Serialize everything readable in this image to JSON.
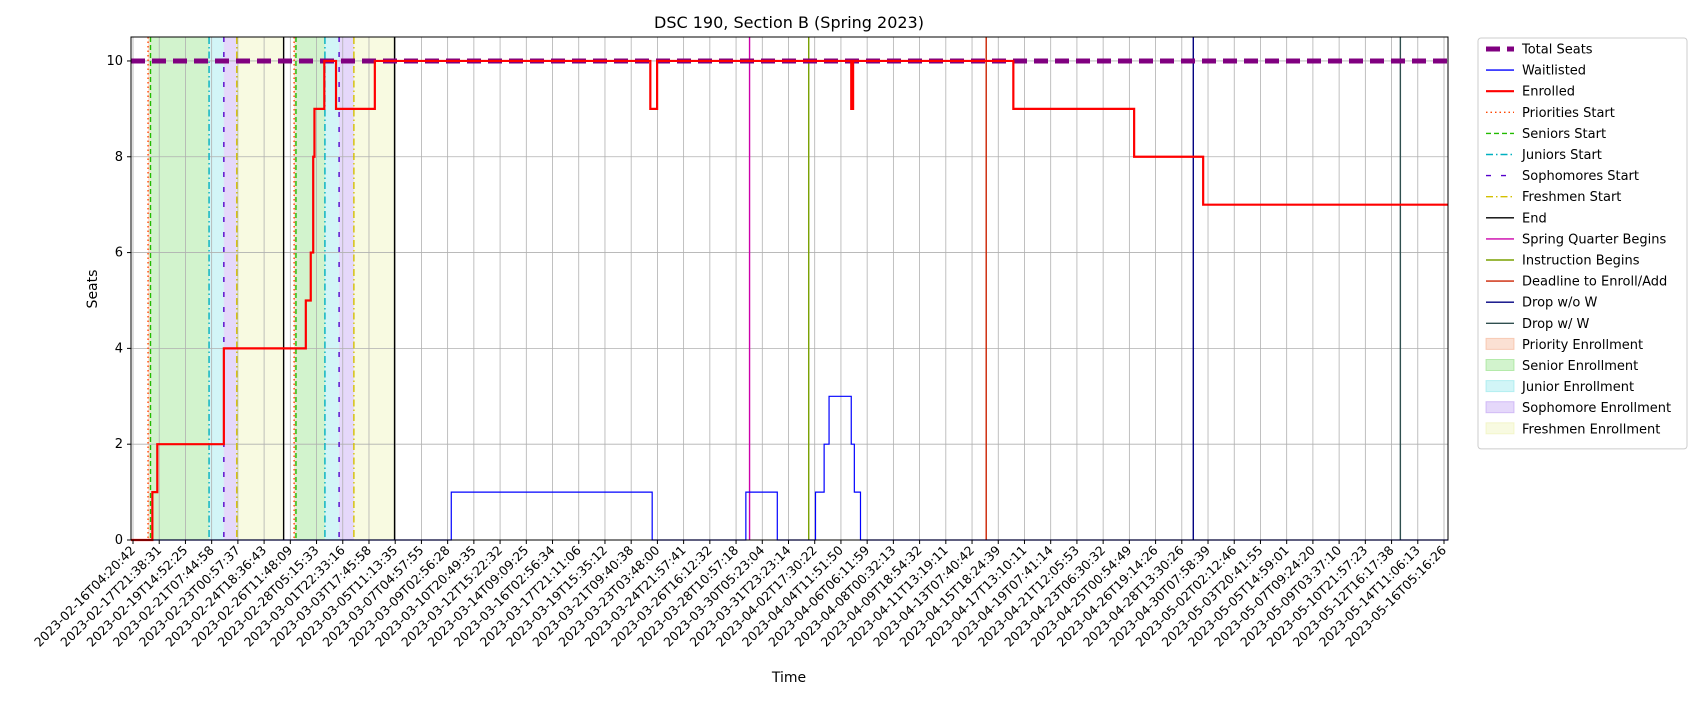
{
  "chart_data": {
    "type": "line",
    "title": "DSC 190, Section B (Spring 2023)",
    "xlabel": "Time",
    "ylabel": "Seats",
    "ylim": [
      0,
      10.5
    ],
    "yticks": [
      0,
      2,
      4,
      6,
      8,
      10
    ],
    "x_domain": [
      "2023-02-16T04:20:42",
      "2023-05-16T05:16:26"
    ],
    "grid": true,
    "legend_position": "right, outside plot",
    "xtick_labels": [
      "2023-02-16T04:20:42",
      "2023-02-17T21:38:31",
      "2023-02-19T14:52:25",
      "2023-02-21T07:44:58",
      "2023-02-23T00:57:37",
      "2023-02-24T18:36:43",
      "2023-02-26T11:48:09",
      "2023-02-28T05:15:33",
      "2023-03-01T22:33:16",
      "2023-03-03T17:45:58",
      "2023-03-05T11:13:35",
      "2023-03-07T04:57:55",
      "2023-03-09T02:56:28",
      "2023-03-10T20:49:35",
      "2023-03-12T15:22:32",
      "2023-03-14T09:09:25",
      "2023-03-16T02:56:34",
      "2023-03-17T21:11:06",
      "2023-03-19T15:35:12",
      "2023-03-21T09:40:38",
      "2023-03-23T03:48:00",
      "2023-03-24T21:57:41",
      "2023-03-26T16:12:32",
      "2023-03-28T10:57:18",
      "2023-03-30T05:23:04",
      "2023-03-31T23:23:14",
      "2023-04-02T17:30:22",
      "2023-04-04T11:51:50",
      "2023-04-06T06:11:59",
      "2023-04-08T00:32:13",
      "2023-04-09T18:54:32",
      "2023-04-11T13:19:11",
      "2023-04-13T07:40:42",
      "2023-04-15T18:24:39",
      "2023-04-17T13:10:11",
      "2023-04-19T07:41:14",
      "2023-04-21T12:05:53",
      "2023-04-23T06:30:32",
      "2023-04-25T00:54:49",
      "2023-04-26T19:14:26",
      "2023-04-28T13:30:26",
      "2023-04-30T07:58:39",
      "2023-05-02T02:12:46",
      "2023-05-03T20:41:55",
      "2023-05-05T14:59:01",
      "2023-05-07T09:24:20",
      "2023-05-09T03:37:10",
      "2023-05-10T21:57:23",
      "2023-05-12T16:17:38",
      "2023-05-14T11:06:13",
      "2023-05-16T05:16:26"
    ],
    "series": [
      {
        "name": "Total Seats",
        "color": "#800080",
        "style": "dashed-thick",
        "points": [
          [
            "2023-02-16T04:20:42",
            10
          ],
          [
            "2023-05-16T05:16:26",
            10
          ]
        ]
      },
      {
        "name": "Waitlisted",
        "color": "#0000ff",
        "style": "step",
        "points": [
          [
            "2023-02-16T04:20:42",
            0
          ],
          [
            "2023-03-09T20:00:00",
            0
          ],
          [
            "2023-03-09T20:00:00",
            1
          ],
          [
            "2023-03-23T10:00:00",
            1
          ],
          [
            "2023-03-23T10:00:00",
            0
          ],
          [
            "2023-03-29T18:00:00",
            0
          ],
          [
            "2023-03-29T18:00:00",
            1
          ],
          [
            "2023-03-31T21:00:00",
            1
          ],
          [
            "2023-03-31T21:00:00",
            0
          ],
          [
            "2023-04-03T11:00:00",
            0
          ],
          [
            "2023-04-03T11:00:00",
            1
          ],
          [
            "2023-04-04T01:00:00",
            1
          ],
          [
            "2023-04-04T01:00:00",
            2
          ],
          [
            "2023-04-04T09:00:00",
            2
          ],
          [
            "2023-04-04T09:00:00",
            3
          ],
          [
            "2023-04-05T21:00:00",
            3
          ],
          [
            "2023-04-05T21:00:00",
            2
          ],
          [
            "2023-04-06T02:00:00",
            2
          ],
          [
            "2023-04-06T02:00:00",
            1
          ],
          [
            "2023-04-06T12:00:00",
            1
          ],
          [
            "2023-04-06T12:00:00",
            0
          ],
          [
            "2023-05-16T05:16:26",
            0
          ]
        ]
      },
      {
        "name": "Enrolled",
        "color": "#ff0000",
        "style": "step-thick",
        "points": [
          [
            "2023-02-16T04:20:42",
            0
          ],
          [
            "2023-02-17T15:00:00",
            0
          ],
          [
            "2023-02-17T15:00:00",
            1
          ],
          [
            "2023-02-17T23:00:00",
            1
          ],
          [
            "2023-02-17T23:00:00",
            2
          ],
          [
            "2023-02-22T11:00:00",
            2
          ],
          [
            "2023-02-22T11:00:00",
            4
          ],
          [
            "2023-02-28T00:00:00",
            4
          ],
          [
            "2023-02-28T00:00:00",
            5
          ],
          [
            "2023-02-28T08:00:00",
            5
          ],
          [
            "2023-02-28T08:00:00",
            6
          ],
          [
            "2023-02-28T12:00:00",
            6
          ],
          [
            "2023-02-28T12:00:00",
            8
          ],
          [
            "2023-02-28T14:00:00",
            8
          ],
          [
            "2023-02-28T14:00:00",
            9
          ],
          [
            "2023-03-01T06:00:00",
            9
          ],
          [
            "2023-03-01T06:00:00",
            10
          ],
          [
            "2023-03-02T01:00:00",
            10
          ],
          [
            "2023-03-02T01:00:00",
            9
          ],
          [
            "2023-03-04T16:00:00",
            9
          ],
          [
            "2023-03-04T16:00:00",
            10
          ],
          [
            "2023-03-23T07:00:00",
            10
          ],
          [
            "2023-03-23T07:00:00",
            9
          ],
          [
            "2023-03-23T18:00:00",
            9
          ],
          [
            "2023-03-23T18:00:00",
            10
          ],
          [
            "2023-04-05T21:00:00",
            10
          ],
          [
            "2023-04-05T21:00:00",
            9
          ],
          [
            "2023-04-06T00:00:00",
            9
          ],
          [
            "2023-04-06T00:00:00",
            10
          ],
          [
            "2023-04-16T20:00:00",
            10
          ],
          [
            "2023-04-16T20:00:00",
            9
          ],
          [
            "2023-04-25T00:00:00",
            9
          ],
          [
            "2023-04-25T00:00:00",
            8
          ],
          [
            "2023-04-29T16:00:00",
            8
          ],
          [
            "2023-04-29T16:00:00",
            7
          ],
          [
            "2023-05-16T05:16:26",
            7
          ]
        ]
      }
    ],
    "phase_bands": [
      {
        "name": "Priority Enrollment",
        "color": "#f4a582",
        "start": "2023-02-17T08:00:00",
        "end": "2023-02-17T12:00:00"
      },
      {
        "name": "Senior Enrollment",
        "color": "#7fdc6f",
        "start": "2023-02-17T12:00:00",
        "end": "2023-02-21T11:00:00"
      },
      {
        "name": "Junior Enrollment",
        "color": "#7fe3e8",
        "start": "2023-02-21T11:00:00",
        "end": "2023-02-22T11:00:00"
      },
      {
        "name": "Sophomore Enrollment",
        "color": "#b48ef0",
        "start": "2023-02-22T11:00:00",
        "end": "2023-02-23T08:00:00"
      },
      {
        "name": "Freshmen Enrollment",
        "color": "#ecf0a8",
        "start": "2023-02-23T08:00:00",
        "end": "2023-02-26T12:00:00"
      },
      {
        "name": "Priority Enrollment",
        "color": "#f4a582",
        "start": "2023-02-27T05:00:00",
        "end": "2023-02-27T08:00:00"
      },
      {
        "name": "Senior Enrollment",
        "color": "#7fdc6f",
        "start": "2023-02-27T08:00:00",
        "end": "2023-03-01T07:00:00"
      },
      {
        "name": "Junior Enrollment",
        "color": "#7fe3e8",
        "start": "2023-03-01T07:00:00",
        "end": "2023-03-02T06:00:00"
      },
      {
        "name": "Sophomore Enrollment",
        "color": "#b48ef0",
        "start": "2023-03-02T06:00:00",
        "end": "2023-03-03T06:00:00"
      },
      {
        "name": "Freshmen Enrollment",
        "color": "#ecf0a8",
        "start": "2023-03-03T06:00:00",
        "end": "2023-03-06T00:00:00"
      }
    ],
    "event_lines": [
      {
        "name": "Priorities Start",
        "color": "#ff4500",
        "style": "dotted",
        "at": [
          "2023-02-17T08:00:00",
          "2023-02-27T05:00:00"
        ]
      },
      {
        "name": "Seniors Start",
        "color": "#22bb00",
        "style": "dashed",
        "at": [
          "2023-02-17T12:00:00",
          "2023-02-27T08:00:00"
        ]
      },
      {
        "name": "Juniors Start",
        "color": "#00b0c0",
        "style": "dashdot",
        "at": [
          "2023-02-21T11:00:00",
          "2023-03-01T07:00:00"
        ]
      },
      {
        "name": "Sophomores Start",
        "color": "#5500cc",
        "style": "loosedash",
        "at": [
          "2023-02-22T11:00:00",
          "2023-03-02T06:00:00"
        ]
      },
      {
        "name": "Freshmen Start",
        "color": "#d4c000",
        "style": "dashdot",
        "at": [
          "2023-02-23T08:00:00",
          "2023-03-03T06:00:00"
        ]
      },
      {
        "name": "End",
        "color": "#000000",
        "style": "solid",
        "at": [
          "2023-02-26T12:00:00",
          "2023-03-06T00:00:00"
        ]
      },
      {
        "name": "Spring Quarter Begins",
        "color": "#cc00aa",
        "style": "solid",
        "at": [
          "2023-03-30T00:00:00"
        ]
      },
      {
        "name": "Instruction Begins",
        "color": "#7aa000",
        "style": "solid",
        "at": [
          "2023-04-03T00:00:00"
        ]
      },
      {
        "name": "Deadline to Enroll/Add",
        "color": "#cc2200",
        "style": "solid",
        "at": [
          "2023-04-14T23:59:00"
        ]
      },
      {
        "name": "Drop w/o W",
        "color": "#000080",
        "style": "solid",
        "at": [
          "2023-04-28T23:59:00"
        ]
      },
      {
        "name": "Drop w/ W",
        "color": "#2f4f4f",
        "style": "solid",
        "at": [
          "2023-05-12T23:59:00"
        ]
      }
    ],
    "legend": [
      {
        "label": "Total Seats",
        "kind": "line",
        "color": "#800080",
        "style": "dashed-thick"
      },
      {
        "label": "Waitlisted",
        "kind": "line",
        "color": "#0000ff",
        "style": "solid"
      },
      {
        "label": "Enrolled",
        "kind": "line",
        "color": "#ff0000",
        "style": "solid-thick"
      },
      {
        "label": "Priorities Start",
        "kind": "line",
        "color": "#ff4500",
        "style": "dotted"
      },
      {
        "label": "Seniors Start",
        "kind": "line",
        "color": "#22bb00",
        "style": "dashed"
      },
      {
        "label": "Juniors Start",
        "kind": "line",
        "color": "#00b0c0",
        "style": "dashdot"
      },
      {
        "label": "Sophomores Start",
        "kind": "line",
        "color": "#5500cc",
        "style": "loosedash"
      },
      {
        "label": "Freshmen Start",
        "kind": "line",
        "color": "#d4c000",
        "style": "dashdot"
      },
      {
        "label": "End",
        "kind": "line",
        "color": "#000000",
        "style": "solid"
      },
      {
        "label": "Spring Quarter Begins",
        "kind": "line",
        "color": "#cc00aa",
        "style": "solid"
      },
      {
        "label": "Instruction Begins",
        "kind": "line",
        "color": "#7aa000",
        "style": "solid"
      },
      {
        "label": "Deadline to Enroll/Add",
        "kind": "line",
        "color": "#cc2200",
        "style": "solid"
      },
      {
        "label": "Drop w/o W",
        "kind": "line",
        "color": "#000080",
        "style": "solid"
      },
      {
        "label": "Drop w/ W",
        "kind": "line",
        "color": "#2f4f4f",
        "style": "solid"
      },
      {
        "label": "Priority Enrollment",
        "kind": "patch",
        "color": "#f4a582"
      },
      {
        "label": "Senior Enrollment",
        "kind": "patch",
        "color": "#7fdc6f"
      },
      {
        "label": "Junior Enrollment",
        "kind": "patch",
        "color": "#7fe3e8"
      },
      {
        "label": "Sophomore Enrollment",
        "kind": "patch",
        "color": "#b48ef0"
      },
      {
        "label": "Freshmen Enrollment",
        "kind": "patch",
        "color": "#ecf0a8"
      }
    ]
  }
}
